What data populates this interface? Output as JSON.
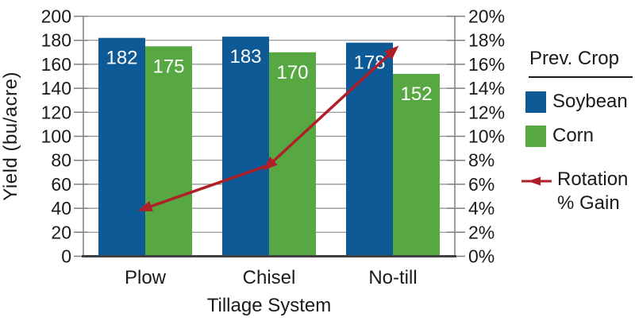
{
  "chart_data": {
    "type": "bar",
    "subtype": "grouped-bars-with-line-overlay",
    "categories": [
      "Plow",
      "Chisel",
      "No-till"
    ],
    "bar_series": [
      {
        "name": "Soybean",
        "color": "#0E5A96",
        "values": [
          182,
          183,
          178
        ]
      },
      {
        "name": "Corn",
        "color": "#57A843",
        "values": [
          175,
          170,
          152
        ]
      }
    ],
    "line_series": {
      "name": "Rotation % Gain",
      "color": "#B01F28",
      "values": [
        4.0,
        7.6,
        17.1
      ]
    },
    "left_axis": {
      "label": "Yield (bu/acre)",
      "min": 0,
      "max": 200,
      "step": 20
    },
    "right_axis": {
      "min": 0,
      "max": 20,
      "step": 2,
      "suffix": "%"
    },
    "xlabel": "Tillage System",
    "title": "",
    "grid": true,
    "legend_position": "right",
    "legend": {
      "title": "Prev. Crop",
      "items": [
        "Soybean",
        "Corn"
      ],
      "line_item_line1": "Rotation",
      "line_item_line2": "% Gain"
    },
    "colors": {
      "gridline": "#8C8C8C",
      "axis_line": "#7F7F7F",
      "baseline": "#404040",
      "tick_text": "#1A1A1A",
      "bar_value_label": "#FFFFFF"
    }
  }
}
